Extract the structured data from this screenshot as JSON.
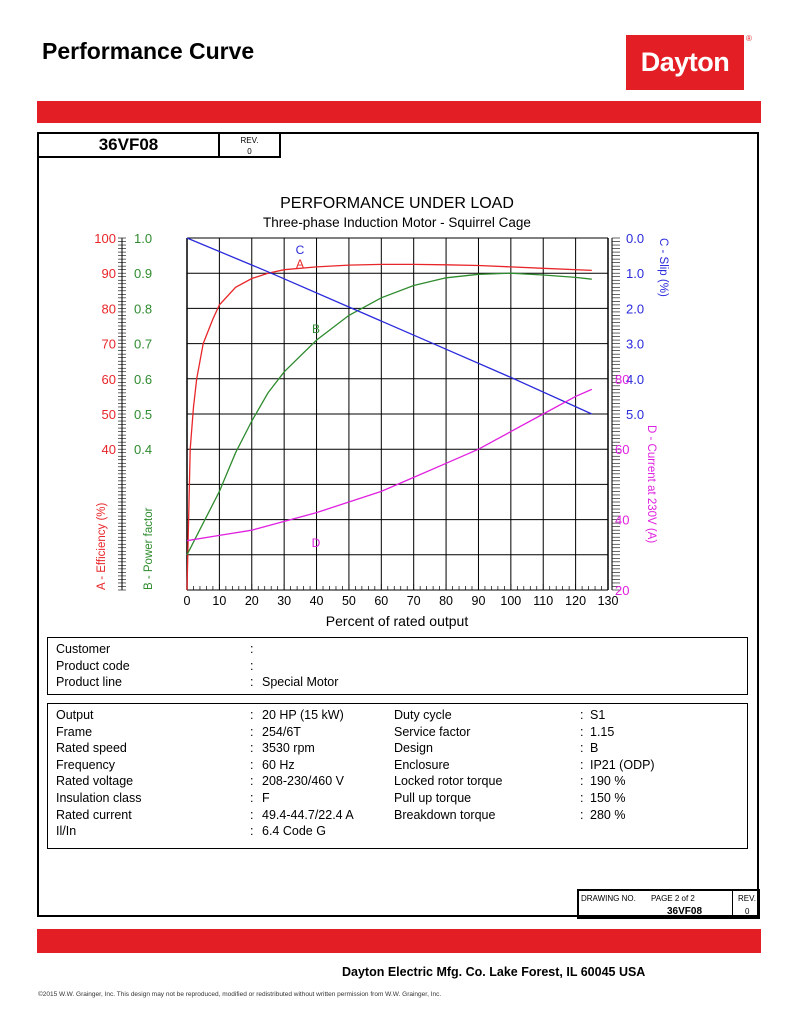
{
  "header": {
    "title": "Performance Curve",
    "logo_text": "Dayton",
    "logo_mark": "®"
  },
  "model_box": {
    "model": "36VF08",
    "rev_label": "REV.",
    "rev": "0"
  },
  "colors": {
    "brand_red": "#e31e24",
    "efficiency": "#e8262a",
    "power_factor": "#2e8b2e",
    "slip": "#2b2bdc",
    "current": "#e020e0"
  },
  "chart_data": {
    "type": "line",
    "title": "PERFORMANCE UNDER LOAD",
    "subtitle": "Three-phase Induction Motor - Squirrel Cage",
    "xlabel": "Percent of rated output",
    "xlim": [
      0,
      130
    ],
    "xticks": [
      "0",
      "10",
      "20",
      "30",
      "40",
      "50",
      "60",
      "70",
      "80",
      "90",
      "100",
      "110",
      "120",
      "130"
    ],
    "grid": true,
    "axes": {
      "efficiency": {
        "label": "A - Efficiency (%)",
        "ticks": [
          "100",
          "90",
          "80",
          "70",
          "60",
          "50",
          "40"
        ],
        "range": [
          0,
          100
        ]
      },
      "power_factor": {
        "label": "B - Power factor",
        "ticks": [
          "1.0",
          "0.9",
          "0.8",
          "0.7",
          "0.6",
          "0.5",
          "0.4"
        ],
        "range": [
          0,
          1
        ]
      },
      "slip": {
        "label": "C - Slip (%)",
        "ticks": [
          "0.0",
          "1.0",
          "2.0",
          "3.0",
          "4.0",
          "5.0"
        ],
        "range": [
          0,
          5
        ],
        "inverted": true
      },
      "current": {
        "label": "D - Current at 230V (A)",
        "ticks": [
          "80",
          "60",
          "40",
          "20",
          "0"
        ],
        "range": [
          0,
          80
        ]
      }
    },
    "series": [
      {
        "name": "A",
        "axis": "efficiency",
        "x": [
          0,
          1,
          2,
          3,
          5,
          8,
          10,
          15,
          20,
          25,
          30,
          40,
          50,
          60,
          70,
          80,
          90,
          100,
          110,
          125
        ],
        "y": [
          0,
          40,
          52,
          60,
          70,
          77,
          81,
          86,
          88.5,
          90,
          91,
          91.8,
          92.3,
          92.5,
          92.5,
          92.4,
          92.2,
          91.8,
          91.4,
          90.8
        ]
      },
      {
        "name": "B",
        "axis": "power_factor",
        "x": [
          0,
          5,
          10,
          15,
          20,
          25,
          30,
          40,
          50,
          60,
          70,
          80,
          90,
          100,
          110,
          120,
          125
        ],
        "y": [
          0.1,
          0.19,
          0.28,
          0.39,
          0.48,
          0.56,
          0.62,
          0.71,
          0.78,
          0.83,
          0.865,
          0.887,
          0.897,
          0.9,
          0.895,
          0.888,
          0.883
        ]
      },
      {
        "name": "C",
        "axis": "slip",
        "x": [
          0,
          25,
          50,
          75,
          100,
          125
        ],
        "y": [
          0,
          0.48,
          0.98,
          1.48,
          1.98,
          2.5
        ]
      },
      {
        "name": "D",
        "axis": "current",
        "x": [
          0,
          10,
          20,
          30,
          40,
          50,
          60,
          70,
          80,
          90,
          100,
          110,
          120,
          125
        ],
        "y": [
          14,
          15.5,
          17,
          19.5,
          22,
          25,
          28,
          32,
          36,
          40,
          45,
          50,
          55,
          57
        ]
      }
    ]
  },
  "customer": [
    {
      "label": "Customer",
      "sep": ":",
      "value": ""
    },
    {
      "label": "Product code",
      "sep": ":",
      "value": ""
    },
    {
      "label": "Product line",
      "sep": ":",
      "value": "Special Motor"
    }
  ],
  "specs_left": [
    {
      "label": "Output",
      "sep": ":",
      "value": "20 HP (15 kW)"
    },
    {
      "label": "Frame",
      "sep": ":",
      "value": "254/6T"
    },
    {
      "label": "Rated speed",
      "sep": ":",
      "value": "3530 rpm"
    },
    {
      "label": "Frequency",
      "sep": ":",
      "value": "60 Hz"
    },
    {
      "label": "Rated voltage",
      "sep": ":",
      "value": "208-230/460 V"
    },
    {
      "label": "Insulation class",
      "sep": ":",
      "value": "F"
    },
    {
      "label": "Rated current",
      "sep": ":",
      "value": "49.4-44.7/22.4 A"
    },
    {
      "label": "Il/In",
      "sep": ":",
      "value": "6.4   Code G"
    }
  ],
  "specs_right": [
    {
      "label": "Duty cycle",
      "sep": ":",
      "value": "S1"
    },
    {
      "label": "Service factor",
      "sep": ":",
      "value": "1.15"
    },
    {
      "label": "Design",
      "sep": ":",
      "value": "B"
    },
    {
      "label": "Enclosure",
      "sep": ":",
      "value": "IP21 (ODP)"
    },
    {
      "label": "Locked rotor torque",
      "sep": ":",
      "value": "190 %"
    },
    {
      "label": "Pull up torque",
      "sep": ":",
      "value": "150 %"
    },
    {
      "label": "Breakdown torque",
      "sep": ":",
      "value": "280 %"
    }
  ],
  "drawing": {
    "label": "DRAWING NO.",
    "page": "PAGE  2  of  2",
    "number": "36VF08",
    "rev_label": "REV.",
    "rev": "0"
  },
  "footer": {
    "company": "Dayton Electric Mfg. Co.  Lake Forest, IL  60045  USA",
    "copyright": "©2015 W.W. Grainger, Inc.   This design may not be reproduced, modified or redistributed without written permission from W.W. Grainger, Inc."
  }
}
